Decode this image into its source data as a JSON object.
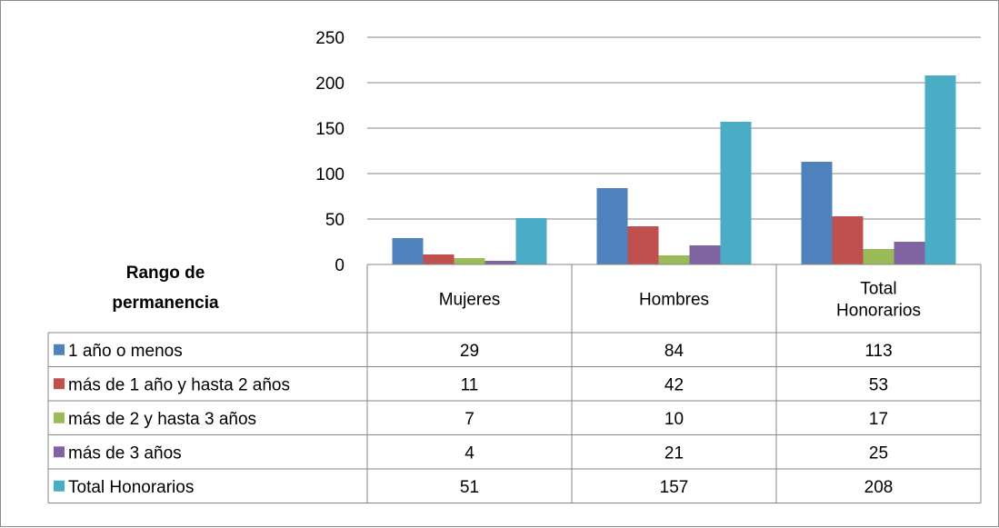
{
  "chart_data": {
    "type": "bar",
    "title": "",
    "xlabel": "",
    "ylabel": "",
    "table_header": "Rango de permanencia",
    "categories": [
      [
        "Mujeres"
      ],
      [
        "Hombres"
      ],
      [
        "Total",
        "Honorarios"
      ]
    ],
    "series": [
      {
        "name": "1 año o menos",
        "color": "#4F81BD",
        "values": [
          29,
          84,
          113
        ]
      },
      {
        "name": "más de 1 año y hasta 2 años",
        "color": "#C0504D",
        "values": [
          11,
          42,
          53
        ]
      },
      {
        "name": "más de 2 y hasta 3 años",
        "color": "#9BBB59",
        "values": [
          7,
          10,
          17
        ]
      },
      {
        "name": "más de 3 años",
        "color": "#8064A2",
        "values": [
          4,
          21,
          25
        ]
      },
      {
        "name": "Total Honorarios",
        "color": "#4BACC6",
        "values": [
          51,
          157,
          208
        ]
      }
    ],
    "ylim": [
      0,
      250
    ],
    "yticks": [
      0,
      50,
      100,
      150,
      200,
      250
    ],
    "grid": true,
    "legend": "data-table"
  }
}
